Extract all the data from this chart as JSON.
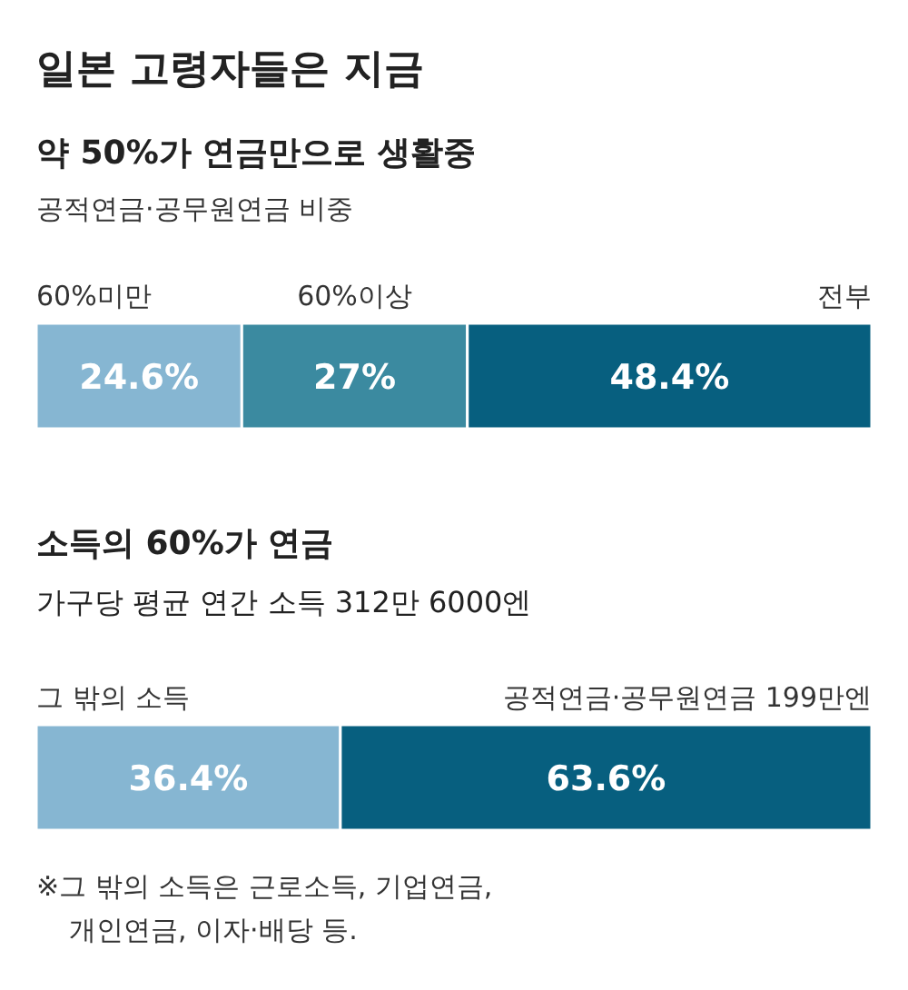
{
  "chart_data": [
    {
      "type": "bar",
      "title": "일본 고령자들은 지금",
      "subtitle": "약 50%가 연금만으로 생활중",
      "annotations": [
        "공적연금·공무원연금 비중"
      ],
      "orientation": "horizontal",
      "stacked": true,
      "categories": [
        null
      ],
      "xlim": [
        0,
        100
      ],
      "tick_labels": false,
      "series": [
        {
          "name": "60%미만",
          "color": "#86b6d2",
          "values": [
            24.6
          ],
          "value_labels": [
            "24.6%"
          ]
        },
        {
          "name": "60%이상",
          "color": "#3b8aa0",
          "values": [
            27
          ],
          "value_labels": [
            "27%"
          ]
        },
        {
          "name": "전부",
          "color": "#075f7f",
          "values": [
            48.4
          ],
          "value_labels": [
            "48.4%"
          ]
        }
      ]
    },
    {
      "type": "bar",
      "title": "소득의 60%가 연금",
      "subtitle": "가구당 평균 연간 소득 312만 6000엔",
      "annotations": [
        "※그 밖의 소득은 근로소득, 기업연금, 개인연금, 이자·배당 등."
      ],
      "orientation": "horizontal",
      "stacked": true,
      "categories": [
        null
      ],
      "xlim": [
        0,
        100
      ],
      "tick_labels": false,
      "series": [
        {
          "name": "그 밖의 소득",
          "color": "#86b6d2",
          "values": [
            36.4
          ],
          "value_labels": [
            "36.4%"
          ]
        },
        {
          "name": "공적연금·공무원연금 199만엔",
          "color": "#075f7f",
          "values": [
            63.6
          ],
          "value_labels": [
            "63.6%"
          ]
        }
      ]
    }
  ]
}
